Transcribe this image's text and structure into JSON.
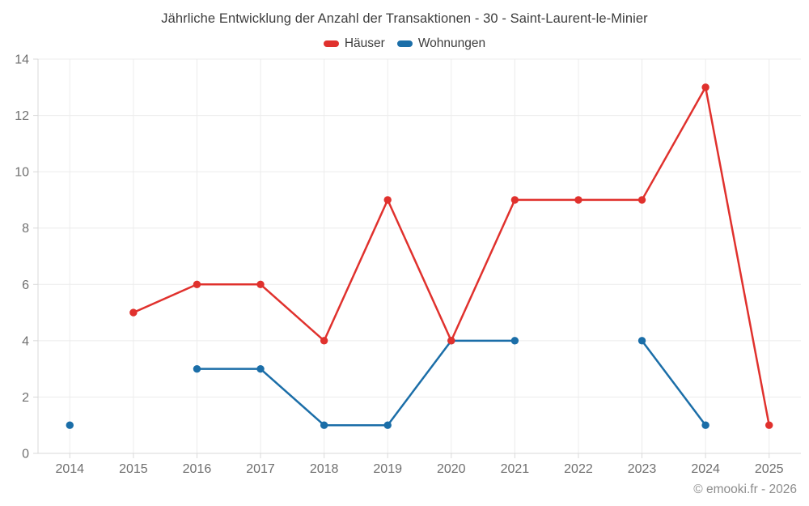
{
  "copyright": "© emooki.fr - 2026",
  "colors": {
    "title_text": "#3e3e3e",
    "tick_text": "#6f6f6f",
    "grid": "#ececec",
    "axis": "#d9d9d9",
    "background": "#ffffff",
    "copyright_text": "#8c8c8c",
    "series_red": "#e0312d",
    "series_blue": "#1b6ea8"
  },
  "chart_data": {
    "type": "line",
    "title": "Jährliche Entwicklung der Anzahl der Transaktionen - 30 - Saint-Laurent-le-Minier",
    "xlabel": "",
    "ylabel": "",
    "categories": [
      "2014",
      "2015",
      "2016",
      "2017",
      "2018",
      "2019",
      "2020",
      "2021",
      "2022",
      "2023",
      "2024",
      "2025"
    ],
    "series": [
      {
        "name": "Häuser",
        "color": "#e0312d",
        "values": [
          null,
          5,
          6,
          6,
          4,
          9,
          4,
          9,
          9,
          9,
          13,
          1
        ]
      },
      {
        "name": "Wohnungen",
        "color": "#1b6ea8",
        "values": [
          1,
          null,
          3,
          3,
          1,
          1,
          4,
          4,
          null,
          4,
          1,
          null
        ]
      }
    ],
    "ylim": [
      0,
      14
    ],
    "yticks": [
      0,
      2,
      4,
      6,
      8,
      10,
      12,
      14
    ],
    "grid": true,
    "legend_position": "top",
    "marker_radius": 4.7,
    "line_width": 2.5
  }
}
